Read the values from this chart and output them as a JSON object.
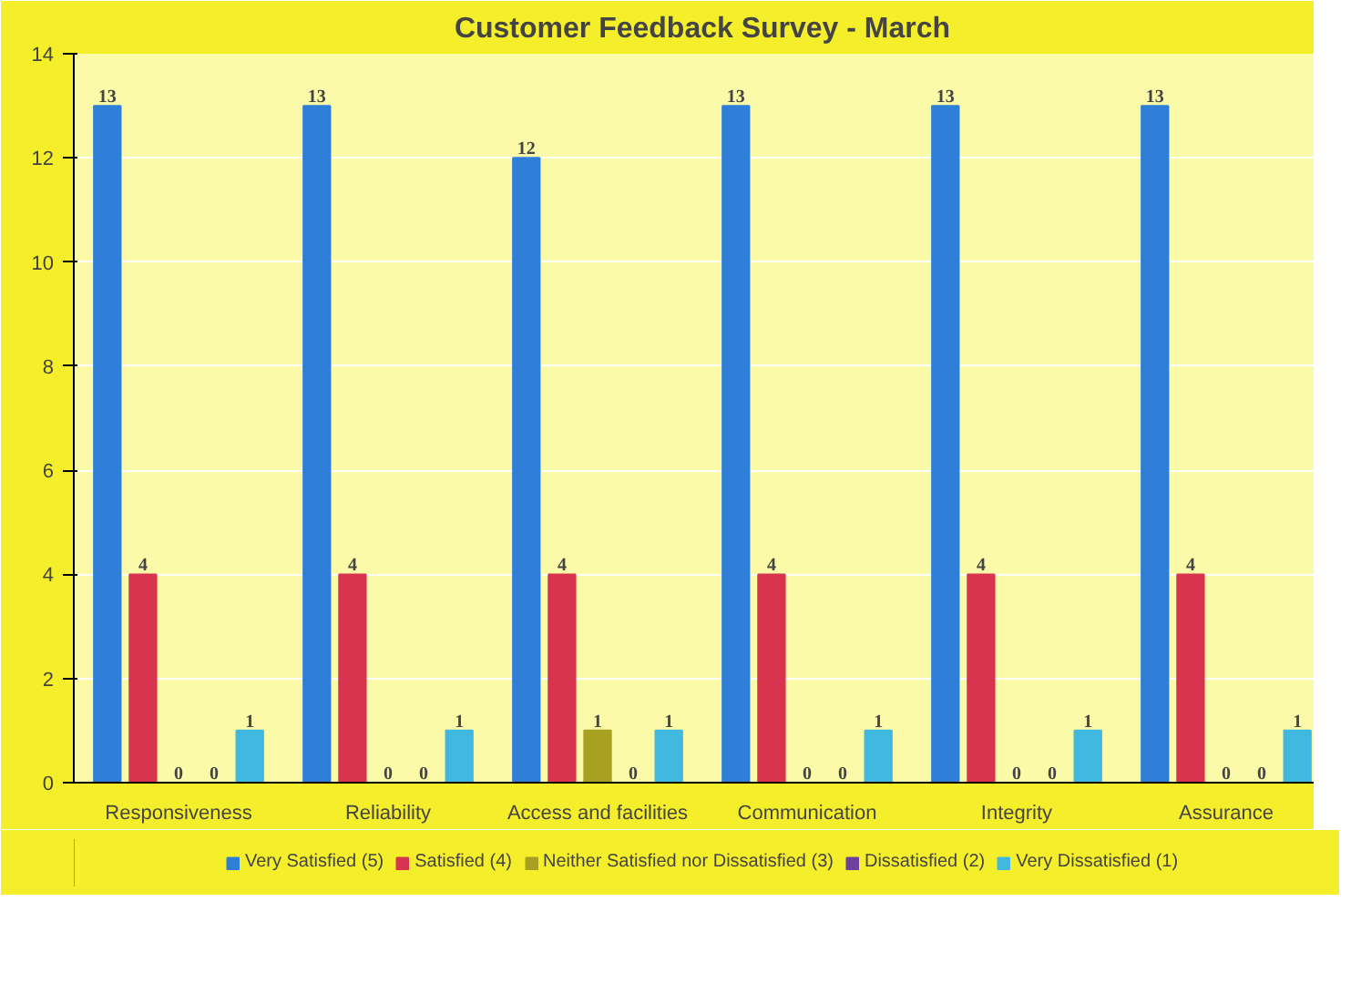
{
  "chart_data": {
    "type": "bar",
    "title": "Customer Feedback Survey - March",
    "categories": [
      "Responsiveness",
      "Reliability",
      "Access and facilities",
      "Communication",
      "Integrity",
      "Assurance"
    ],
    "series": [
      {
        "name": "Very Satisfied (5)",
        "color": "#2f7fd8",
        "values": [
          13,
          13,
          12,
          13,
          13,
          13
        ]
      },
      {
        "name": "Satisfied (4)",
        "color": "#d8344f",
        "values": [
          4,
          4,
          4,
          4,
          4,
          4
        ]
      },
      {
        "name": "Neither Satisfied nor Dissatisfied (3)",
        "color": "#a8a020",
        "values": [
          0,
          0,
          1,
          0,
          0,
          0
        ]
      },
      {
        "name": "Dissatisfied (2)",
        "color": "#7040a0",
        "values": [
          0,
          0,
          0,
          0,
          0,
          0
        ]
      },
      {
        "name": "Very Dissatisfied (1)",
        "color": "#40b8e0",
        "values": [
          1,
          1,
          1,
          1,
          1,
          1
        ]
      }
    ],
    "ylim": [
      0,
      14
    ],
    "yticks": [
      0,
      2,
      4,
      6,
      8,
      10,
      12,
      14
    ],
    "grid": "y",
    "legend": "bottom",
    "data_labels": true
  }
}
